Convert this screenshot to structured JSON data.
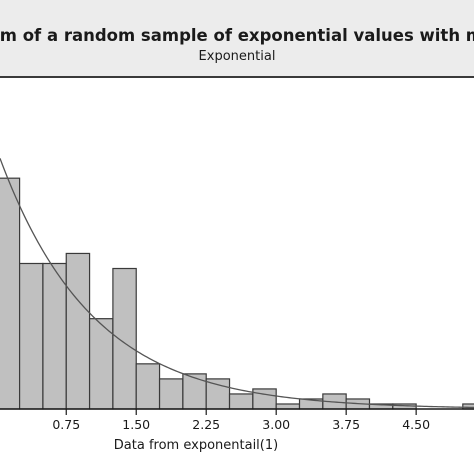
{
  "chart_data": {
    "type": "bar",
    "title": "gram of a random sample of exponential values with mea",
    "subtitle": "Exponential",
    "xlabel": "Data from exponentail(1)",
    "ylabel": "",
    "bin_width": 0.25,
    "bins": [
      {
        "start": 0.0,
        "end": 0.25,
        "count": 46
      },
      {
        "start": 0.25,
        "end": 0.5,
        "count": 29
      },
      {
        "start": 0.5,
        "end": 0.75,
        "count": 29
      },
      {
        "start": 0.75,
        "end": 1.0,
        "count": 31
      },
      {
        "start": 1.0,
        "end": 1.25,
        "count": 18
      },
      {
        "start": 1.25,
        "end": 1.5,
        "count": 28
      },
      {
        "start": 1.5,
        "end": 1.75,
        "count": 9
      },
      {
        "start": 1.75,
        "end": 2.0,
        "count": 6
      },
      {
        "start": 2.0,
        "end": 2.25,
        "count": 7
      },
      {
        "start": 2.25,
        "end": 2.5,
        "count": 6
      },
      {
        "start": 2.5,
        "end": 2.75,
        "count": 3
      },
      {
        "start": 2.75,
        "end": 3.0,
        "count": 4
      },
      {
        "start": 3.0,
        "end": 3.25,
        "count": 1
      },
      {
        "start": 3.25,
        "end": 3.5,
        "count": 2
      },
      {
        "start": 3.5,
        "end": 3.75,
        "count": 3
      },
      {
        "start": 3.75,
        "end": 4.0,
        "count": 2
      },
      {
        "start": 4.0,
        "end": 4.25,
        "count": 1
      },
      {
        "start": 4.25,
        "end": 4.5,
        "count": 1
      },
      {
        "start": 4.5,
        "end": 4.75,
        "count": 0
      },
      {
        "start": 4.75,
        "end": 5.0,
        "count": 0
      },
      {
        "start": 5.0,
        "end": 5.25,
        "count": 1
      }
    ],
    "x_ticks": [
      0.75,
      1.5,
      2.25,
      3.0,
      3.75,
      4.5
    ],
    "x_tick_labels": [
      "0.75",
      "1.50",
      "2.25",
      "3.00",
      "3.75",
      "4.50"
    ],
    "xlim": [
      0.04,
      5.12
    ],
    "ylim": [
      0,
      56
    ],
    "fitted_curve": {
      "type": "exponential",
      "mean": 1.0,
      "scale": 52
    },
    "grid": false,
    "colors": {
      "bar_fill": "#c0c0c0",
      "bar_stroke": "#3a3a3a",
      "curve": "#555555",
      "axis": "#1a1a1a"
    }
  }
}
